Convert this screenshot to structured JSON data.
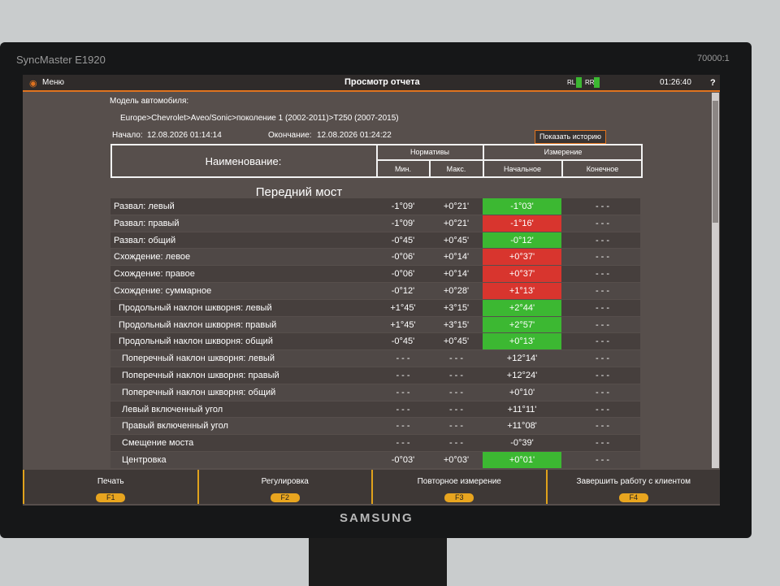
{
  "monitor": {
    "model": "SyncMaster E1920",
    "brand": "SAMSUNG",
    "badge": "70000:1"
  },
  "header": {
    "menu": "Меню",
    "title": "Просмотр отчета",
    "rl": "RL",
    "rr": "RR",
    "time": "01:26:40",
    "help": "?"
  },
  "info": {
    "model_label": "Модель автомобиля:",
    "model": "Europe>Chevrolet>Aveo/Sonic>поколение 1 (2002-2011)>T250 (2007-2015)",
    "start_label": "Начало:",
    "start": "12.08.2026 01:14:14",
    "end_label": "Окончание:",
    "end": "12.08.2026 01:24:22",
    "history_button": "Показать историю"
  },
  "table": {
    "headers": {
      "name": "Наименование:",
      "norms": "Нормативы",
      "measure": "Измерение",
      "min": "Мин.",
      "max": "Макс.",
      "initial": "Начальное",
      "final": "Конечное"
    },
    "section": "Передний мост",
    "rows": [
      {
        "name": "Развал: левый",
        "min": "-1°09'",
        "max": "+0°21'",
        "initial": "-1°03'",
        "final": "- - -",
        "color": "#3cb832"
      },
      {
        "name": "Развал: правый",
        "min": "-1°09'",
        "max": "+0°21'",
        "initial": "-1°16'",
        "final": "- - -",
        "color": "#d8352e"
      },
      {
        "name": "Развал: общий",
        "min": "-0°45'",
        "max": "+0°45'",
        "initial": "-0°12'",
        "final": "- - -",
        "color": "#3cb832"
      },
      {
        "name": "Схождение: левое",
        "min": "-0°06'",
        "max": "+0°14'",
        "initial": "+0°37'",
        "final": "- - -",
        "color": "#d8352e"
      },
      {
        "name": "Схождение: правое",
        "min": "-0°06'",
        "max": "+0°14'",
        "initial": "+0°37'",
        "final": "- - -",
        "color": "#d8352e"
      },
      {
        "name": "Схождение: суммарное",
        "min": "-0°12'",
        "max": "+0°28'",
        "initial": "+1°13'",
        "final": "- - -",
        "color": "#d8352e"
      },
      {
        "name": "Продольный наклон шкворня: левый",
        "min": "+1°45'",
        "max": "+3°15'",
        "initial": "+2°44'",
        "final": "- - -",
        "color": "#3cb832"
      },
      {
        "name": "Продольный наклон шкворня: правый",
        "min": "+1°45'",
        "max": "+3°15'",
        "initial": "+2°57'",
        "final": "- - -",
        "color": "#3cb832"
      },
      {
        "name": "Продольный наклон шкворня: общий",
        "min": "-0°45'",
        "max": "+0°45'",
        "initial": "+0°13'",
        "final": "- - -",
        "color": "#3cb832"
      },
      {
        "name": "Поперечный наклон шкворня: левый",
        "min": "- - -",
        "max": "- - -",
        "initial": "+12°14'",
        "final": "- - -"
      },
      {
        "name": "Поперечный наклон шкворня: правый",
        "min": "- - -",
        "max": "- - -",
        "initial": "+12°24'",
        "final": "- - -"
      },
      {
        "name": "Поперечный наклон шкворня: общий",
        "min": "- - -",
        "max": "- - -",
        "initial": "+0°10'",
        "final": "- - -"
      },
      {
        "name": "Левый включенный угол",
        "min": "- - -",
        "max": "- - -",
        "initial": "+11°11'",
        "final": "- - -"
      },
      {
        "name": "Правый включенный угол",
        "min": "- - -",
        "max": "- - -",
        "initial": "+11°08'",
        "final": "- - -"
      },
      {
        "name": "Смещение моста",
        "min": "- - -",
        "max": "- - -",
        "initial": "-0°39'",
        "final": "- - -"
      },
      {
        "name": "Центровка",
        "min": "-0°03'",
        "max": "+0°03'",
        "initial": "+0°01'",
        "final": "- - -",
        "color": "#3cb832"
      }
    ]
  },
  "footer": [
    {
      "label": "Печать",
      "key": "F1"
    },
    {
      "label": "Регулировка",
      "key": "F2"
    },
    {
      "label": "Повторное измерение",
      "key": "F3"
    },
    {
      "label": "Завершить работу с клиентом",
      "key": "F4"
    }
  ]
}
